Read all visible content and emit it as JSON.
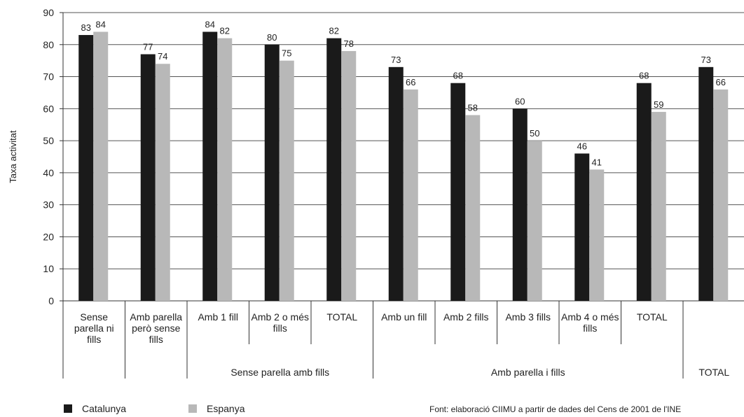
{
  "chart_data": {
    "type": "bar",
    "ylabel": "Taxa activitat",
    "ylim": [
      0,
      90
    ],
    "yticks": [
      0,
      10,
      20,
      30,
      40,
      50,
      60,
      70,
      80,
      90
    ],
    "grid": true,
    "categories": [
      "Sense parella ni fills",
      "Amb parella però sense fills",
      "Amb 1 fill",
      "Amb 2 o més fills",
      "TOTAL",
      "Amb un fill",
      "Amb 2 fills",
      "Amb 3 fills",
      "Amb 4 o més fills",
      "TOTAL",
      "TOTAL"
    ],
    "groups": [
      {
        "label": "",
        "span": [
          0,
          0
        ]
      },
      {
        "label": "",
        "span": [
          1,
          1
        ]
      },
      {
        "label": "Sense parella amb fills",
        "span": [
          2,
          4
        ]
      },
      {
        "label": "Amb parella i fills",
        "span": [
          5,
          9
        ]
      },
      {
        "label": "TOTAL",
        "span": [
          10,
          10
        ]
      }
    ],
    "series": [
      {
        "name": "Catalunya",
        "color": "#1a1a1a",
        "values": [
          83,
          77,
          84,
          80,
          82,
          73,
          68,
          60,
          46,
          68,
          73
        ]
      },
      {
        "name": "Espanya",
        "color": "#b8b8b8",
        "values": [
          84,
          74,
          82,
          75,
          78,
          66,
          58,
          50,
          41,
          59,
          66
        ]
      }
    ],
    "legend_position": "bottom-left"
  },
  "legend": {
    "catalunya": "Catalunya",
    "espanya": "Espanya",
    "catalunya_color": "#1a1a1a",
    "espanya_color": "#b8b8b8"
  },
  "source": "Font: elaboració CIIMU a partir de dades del Cens de 2001 de l'INE"
}
